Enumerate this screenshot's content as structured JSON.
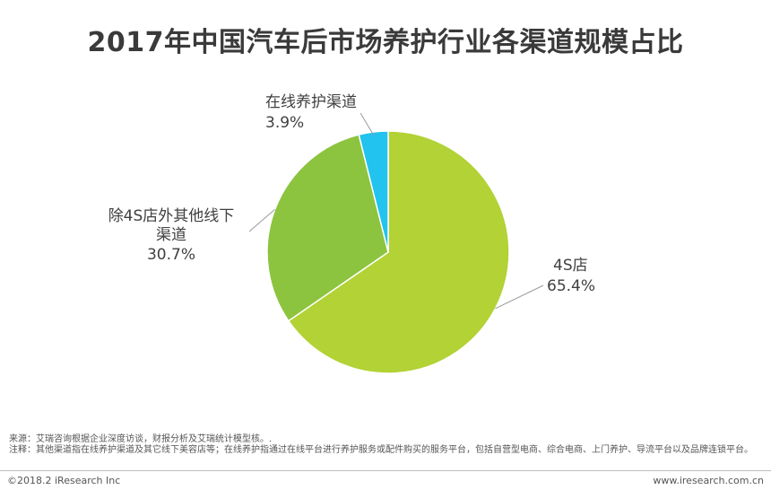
{
  "chart_data": {
    "type": "pie",
    "title": "2017年中国汽车后市场养护行业各渠道规模占比",
    "slices": [
      {
        "name": "4S店",
        "label_lines": [
          "4S店"
        ],
        "value": 65.4,
        "value_label": "65.4%",
        "color": "#b2d235"
      },
      {
        "name": "除4S店外其他线下渠道",
        "label_lines": [
          "除4S店外其他线下",
          "渠道"
        ],
        "value": 30.7,
        "value_label": "30.7%",
        "color": "#8cc43f"
      },
      {
        "name": "在线养护渠道",
        "label_lines": [
          "在线养护渠道"
        ],
        "value": 3.9,
        "value_label": "3.9%",
        "color": "#22c3ee"
      }
    ]
  },
  "footer": {
    "source": "来源：艾瑞咨询根据企业深度访谈，财报分析及艾瑞统计模型核。.",
    "note": "注释：其他渠道指在线养护渠道及其它线下美容店等；在线养护指通过在线平台进行养护服务或配件购买的服务平台，包括自营型电商、综合电商、上门养护、导流平台以及品牌连锁平台。",
    "copyright": "©2018.2 iResearch Inc",
    "website": "www.iresearch.com.cn"
  }
}
